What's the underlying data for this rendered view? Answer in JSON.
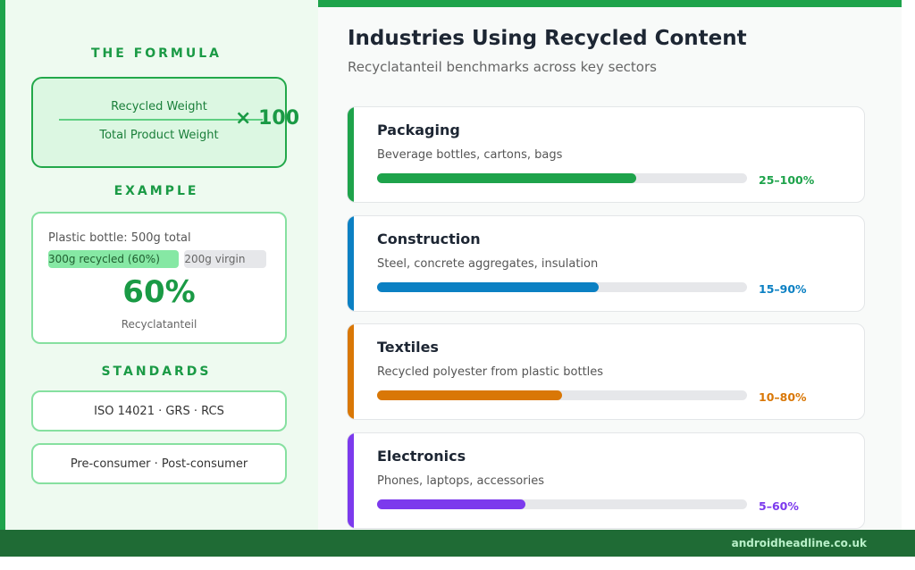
{
  "sidebar": {
    "formula": {
      "heading": "THE FORMULA",
      "numerator": "Recycled Weight",
      "denominator": "Total Product Weight",
      "multiplier": "× 100"
    },
    "example": {
      "heading": "EXAMPLE",
      "description": "Plastic bottle: 500g total",
      "recycled_label": "300g recycled (60%)",
      "virgin_label": "200g virgin",
      "recycled_share": 60,
      "result": "60%",
      "result_label": "Recyclatanteil"
    },
    "standards": {
      "heading": "STANDARDS",
      "items": [
        "ISO 14021 · GRS · RCS",
        "Pre-consumer · Post-consumer"
      ]
    }
  },
  "main": {
    "title": "Industries Using Recycled Content",
    "subtitle": "Recyclatanteil benchmarks across key sectors",
    "industries": [
      {
        "name": "Packaging",
        "description": "Beverage bottles, cartons, bags",
        "range": "25–100%",
        "fill": 70,
        "color": "#1ea34b"
      },
      {
        "name": "Construction",
        "description": "Steel, concrete aggregates, insulation",
        "range": "15–90%",
        "fill": 60,
        "color": "#0b80c3"
      },
      {
        "name": "Textiles",
        "description": "Recycled polyester from plastic bottles",
        "range": "10–80%",
        "fill": 50,
        "color": "#d97706"
      },
      {
        "name": "Electronics",
        "description": "Phones, laptops, accessories",
        "range": "5–60%",
        "fill": 40,
        "color": "#7c3aed"
      }
    ]
  },
  "footer": {
    "source": "androidheadline.co.uk"
  }
}
